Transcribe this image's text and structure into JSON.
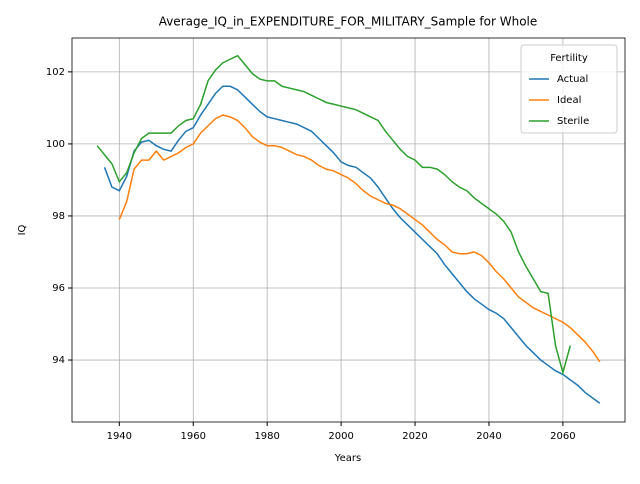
{
  "chart_data": {
    "type": "line",
    "title": "Average_IQ_in_EXPENDITURE_FOR_MILITARY_Sample for Whole",
    "xlabel": "Years",
    "ylabel": "IQ",
    "x": [
      1934,
      1936,
      1938,
      1940,
      1942,
      1944,
      1946,
      1948,
      1950,
      1952,
      1954,
      1956,
      1958,
      1960,
      1962,
      1964,
      1966,
      1968,
      1970,
      1972,
      1974,
      1976,
      1978,
      1980,
      1982,
      1984,
      1986,
      1988,
      1990,
      1992,
      1994,
      1996,
      1998,
      2000,
      2002,
      2004,
      2006,
      2008,
      2010,
      2012,
      2014,
      2016,
      2018,
      2020,
      2022,
      2024,
      2026,
      2028,
      2030,
      2032,
      2034,
      2036,
      2038,
      2040,
      2042,
      2044,
      2046,
      2048,
      2050,
      2052,
      2054,
      2056,
      2058,
      2060,
      2062,
      2064,
      2066,
      2068,
      2070
    ],
    "series": [
      {
        "name": "Actual",
        "color": "#1f77b4",
        "values": [
          null,
          99.35,
          98.8,
          98.7,
          99.1,
          99.8,
          100.05,
          100.1,
          99.95,
          99.85,
          99.8,
          100.1,
          100.35,
          100.45,
          100.8,
          101.1,
          101.4,
          101.6,
          101.6,
          101.5,
          101.3,
          101.1,
          100.9,
          100.75,
          100.7,
          100.65,
          100.6,
          100.55,
          100.45,
          100.35,
          100.15,
          99.95,
          99.75,
          99.5,
          99.4,
          99.35,
          99.2,
          99.05,
          98.8,
          98.5,
          98.2,
          97.95,
          97.75,
          97.55,
          97.35,
          97.15,
          96.95,
          96.65,
          96.4,
          96.15,
          95.9,
          95.7,
          95.55,
          95.4,
          95.3,
          95.15,
          94.9,
          94.65,
          94.4,
          94.2,
          94.0,
          93.85,
          93.7,
          93.6,
          93.45,
          93.3,
          93.1,
          92.95,
          92.8
        ]
      },
      {
        "name": "Ideal",
        "color": "#ff7f0e",
        "values": [
          null,
          null,
          null,
          97.9,
          98.4,
          99.3,
          99.55,
          99.55,
          99.8,
          99.55,
          99.65,
          99.75,
          99.9,
          100.0,
          100.3,
          100.5,
          100.7,
          100.8,
          100.75,
          100.65,
          100.45,
          100.2,
          100.05,
          99.95,
          99.95,
          99.9,
          99.8,
          99.7,
          99.65,
          99.55,
          99.4,
          99.3,
          99.25,
          99.15,
          99.05,
          98.9,
          98.7,
          98.55,
          98.45,
          98.35,
          98.3,
          98.2,
          98.05,
          97.9,
          97.75,
          97.55,
          97.35,
          97.2,
          97.0,
          96.95,
          96.95,
          97.0,
          96.9,
          96.7,
          96.45,
          96.25,
          96.0,
          95.75,
          95.6,
          95.45,
          95.35,
          95.25,
          95.15,
          95.05,
          94.9,
          94.7,
          94.5,
          94.25,
          93.95
        ]
      },
      {
        "name": "Sterile",
        "color": "#2ca02c",
        "values": [
          99.95,
          99.7,
          99.45,
          98.95,
          99.2,
          99.75,
          100.15,
          100.3,
          100.3,
          100.3,
          100.3,
          100.5,
          100.65,
          100.7,
          101.1,
          101.75,
          102.05,
          102.25,
          102.35,
          102.45,
          102.2,
          101.95,
          101.8,
          101.75,
          101.75,
          101.6,
          101.55,
          101.5,
          101.45,
          101.35,
          101.25,
          101.15,
          101.1,
          101.05,
          101.0,
          100.95,
          100.85,
          100.75,
          100.65,
          100.35,
          100.1,
          99.85,
          99.65,
          99.55,
          99.35,
          99.35,
          99.3,
          99.15,
          98.95,
          98.8,
          98.7,
          98.5,
          98.35,
          98.2,
          98.05,
          97.85,
          97.55,
          97.0,
          96.6,
          96.25,
          95.9,
          95.85,
          94.4,
          93.65,
          94.4,
          null,
          null,
          null,
          null
        ]
      }
    ],
    "xlim": [
      1927.2,
      2076.8
    ],
    "xticks": [
      1940,
      1960,
      1980,
      2000,
      2020,
      2040,
      2060
    ],
    "ylim": [
      92.28,
      102.94
    ],
    "yticks": [
      94,
      96,
      98,
      100,
      102
    ],
    "grid": true,
    "legend_title": "Fertility",
    "legend_position": "upper right"
  }
}
